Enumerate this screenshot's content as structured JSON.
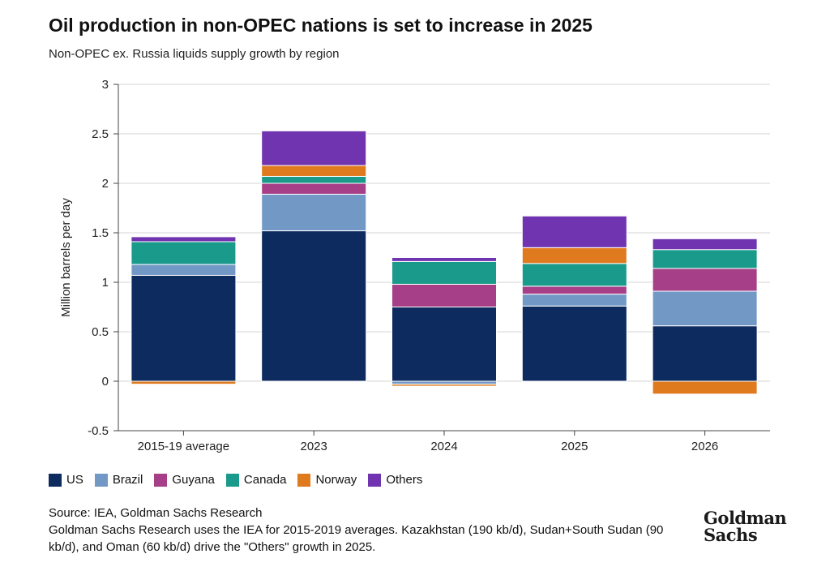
{
  "header": {
    "title": "Oil production in non-OPEC nations is set to increase in 2025",
    "subtitle": "Non-OPEC ex. Russia liquids supply growth by region"
  },
  "chart_data": {
    "type": "bar",
    "stacked": true,
    "categories": [
      "2015-19 average",
      "2023",
      "2024",
      "2025",
      "2026"
    ],
    "ylabel": "Million barrels per day",
    "xlabel": "",
    "ylim": [
      -0.5,
      3
    ],
    "yticks": [
      3,
      2.5,
      2,
      1.5,
      1,
      0.5,
      0,
      -0.5
    ],
    "ytick_labels": [
      "3",
      "2.5",
      "2",
      "1.5",
      "1",
      "0.5",
      "0",
      "-0.5"
    ],
    "grid": true,
    "legend_position": "bottom-left",
    "series": [
      {
        "name": "US",
        "color": "#0d2b5e",
        "values": [
          1.07,
          1.52,
          0.75,
          0.76,
          0.56
        ]
      },
      {
        "name": "Brazil",
        "color": "#7299c6",
        "values": [
          0.11,
          0.37,
          -0.03,
          0.12,
          0.35
        ]
      },
      {
        "name": "Guyana",
        "color": "#a63f87",
        "values": [
          0.0,
          0.11,
          0.23,
          0.08,
          0.23
        ]
      },
      {
        "name": "Canada",
        "color": "#1a9a8a",
        "values": [
          0.23,
          0.07,
          0.23,
          0.23,
          0.19
        ]
      },
      {
        "name": "Norway",
        "color": "#e07a1f",
        "values": [
          -0.03,
          0.11,
          -0.02,
          0.16,
          -0.13
        ]
      },
      {
        "name": "Others",
        "color": "#7034b0",
        "values": [
          0.05,
          0.35,
          0.04,
          0.32,
          0.11
        ]
      }
    ]
  },
  "footer": {
    "source": "Source: IEA, Goldman Sachs Research",
    "note": "Goldman Sachs Research uses the IEA for 2015-2019 averages. Kazakhstan (190 kb/d), Sudan+South Sudan (90 kb/d), and Oman (60 kb/d) drive the \"Others\" growth in 2025.",
    "logo_line1": "Goldman",
    "logo_line2": "Sachs"
  }
}
